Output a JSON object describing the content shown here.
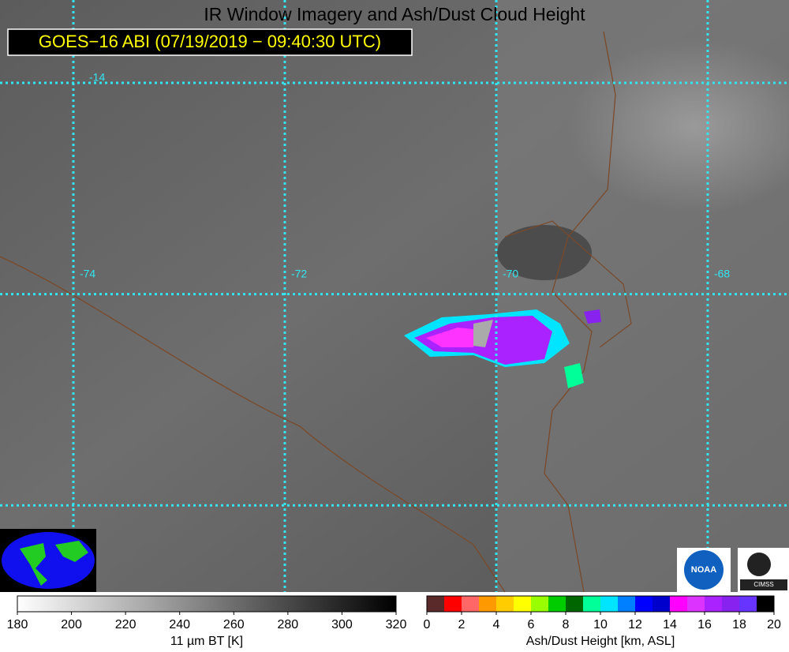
{
  "header": {
    "title": "IR Window Imagery and Ash/Dust Cloud Height",
    "subtitle": "GOES−16 ABI (07/19/2019 − 09:40:30 UTC)"
  },
  "map": {
    "lonlim": [
      -74.694,
      -67.231
    ],
    "latlim": [
      -13.215,
      -18.82
    ],
    "lon_lines": [
      {
        "value": -74,
        "label": "-74"
      },
      {
        "value": -72,
        "label": "-72"
      },
      {
        "value": -70,
        "label": "-70"
      },
      {
        "value": -68,
        "label": "-68"
      }
    ],
    "lat_lines": [
      -16,
      -18
    ],
    "lat_labels": [
      {
        "value": -14,
        "label": "-14"
      }
    ],
    "grid_color": "#33e5f0"
  },
  "logos": [
    "NOAA",
    "CIMSS"
  ],
  "bt_colorbar": {
    "label": "11 µm BT [K]",
    "lim": [
      180,
      320
    ],
    "ticks": [
      180,
      200,
      220,
      240,
      260,
      280,
      300,
      320
    ]
  },
  "ash_colorbar": {
    "label": "Ash/Dust Height [km, ASL]",
    "lim": [
      0,
      20
    ],
    "ticks": [
      0,
      2,
      4,
      6,
      8,
      10,
      12,
      14,
      16,
      18,
      20
    ],
    "colors": [
      "#5a2a2a",
      "#ff0000",
      "#ff6666",
      "#ff9900",
      "#ffcc00",
      "#ffff00",
      "#99ff00",
      "#00cc00",
      "#006600",
      "#00ff99",
      "#00e5ff",
      "#0080ff",
      "#0000ff",
      "#0000cc",
      "#ff00ff",
      "#dd33ff",
      "#aa22ff",
      "#8822ee",
      "#6633ff",
      "#000000"
    ]
  }
}
